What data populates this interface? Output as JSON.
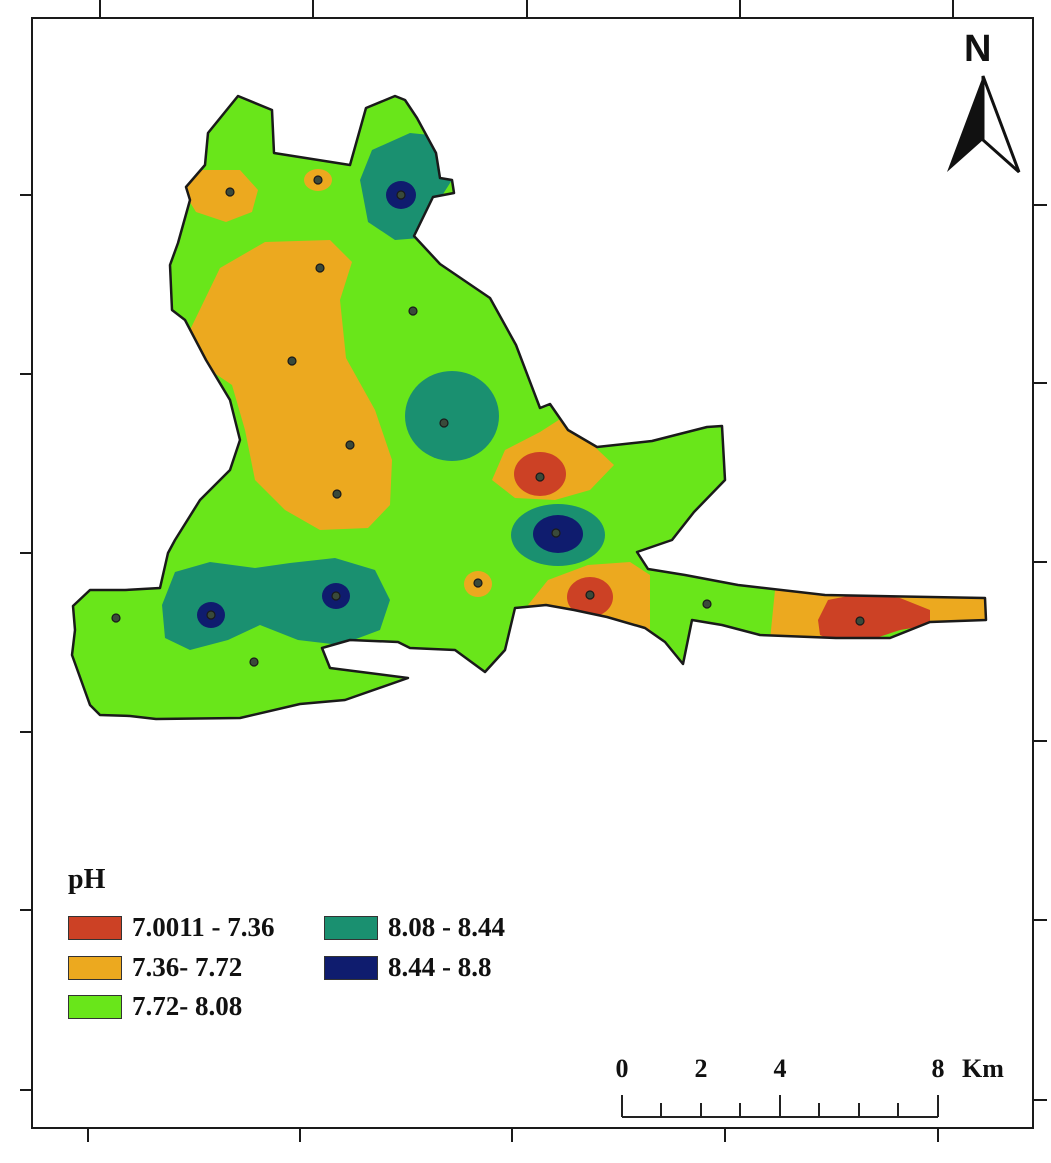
{
  "legend": {
    "title": "pH",
    "classes": [
      {
        "label": "7.0011 - 7.36",
        "color": "#cc4125"
      },
      {
        "label": "7.36- 7.72",
        "color": "#eca91f"
      },
      {
        "label": "7.72- 8.08",
        "color": "#69e61a"
      },
      {
        "label": "8.08 - 8.44",
        "color": "#1a9070"
      },
      {
        "label": "8.44 - 8.8",
        "color": "#0f1c6e"
      }
    ]
  },
  "north_arrow": {
    "label": "N"
  },
  "scale_bar": {
    "ticks": [
      "0",
      "2",
      "4",
      "8"
    ],
    "unit": "Km"
  },
  "colors": {
    "boundary": "#1a1a1a",
    "sample_point": "#3a4a3a"
  },
  "icons": {
    "north": "north-arrow-icon"
  }
}
